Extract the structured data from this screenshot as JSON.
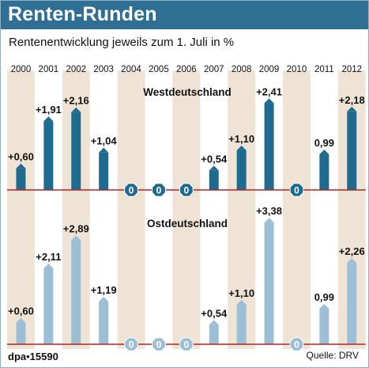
{
  "header": {
    "title": "Renten-Runden",
    "subtitle": "Rentenentwicklung jeweils zum 1. Juli in %"
  },
  "footer": {
    "logo": "dpa•15590",
    "source": "Quelle: DRV"
  },
  "colors": {
    "title_bar": "#2f6f93",
    "west_bar": "#1f6a8f",
    "east_bar": "#9dbfd5",
    "stripe": "#efe3d5",
    "baseline": "#b02428",
    "zero_badge_west": "#1f6a8f",
    "zero_badge_east": "#9dbfd5"
  },
  "chart_data": {
    "type": "bar",
    "categories": [
      "2000",
      "2001",
      "2002",
      "2003",
      "2004",
      "2005",
      "2006",
      "2007",
      "2008",
      "2009",
      "2010",
      "2011",
      "2012"
    ],
    "series": [
      {
        "name": "Westdeutschland",
        "values": [
          0.6,
          1.91,
          2.16,
          1.04,
          0,
          0,
          0,
          0.54,
          1.1,
          2.41,
          0,
          0.99,
          2.18
        ],
        "labels": [
          "+0,60",
          "+1,91",
          "+2,16",
          "+1,04",
          "0",
          "0",
          "0",
          "+0,54",
          "+1,10",
          "+2,41",
          "0",
          "0,99",
          "+2,18"
        ]
      },
      {
        "name": "Ostdeutschland",
        "values": [
          0.6,
          2.11,
          2.89,
          1.19,
          0,
          0,
          0,
          0.54,
          1.1,
          3.38,
          0,
          0.99,
          2.26
        ],
        "labels": [
          "+0,60",
          "+2,11",
          "+2,89",
          "+1,19",
          "0",
          "0",
          "0",
          "+0,54",
          "+1,10",
          "+3,38",
          "0",
          "0,99",
          "+2,26"
        ]
      }
    ],
    "ylabel": "%",
    "grid": false,
    "legend": "none"
  }
}
